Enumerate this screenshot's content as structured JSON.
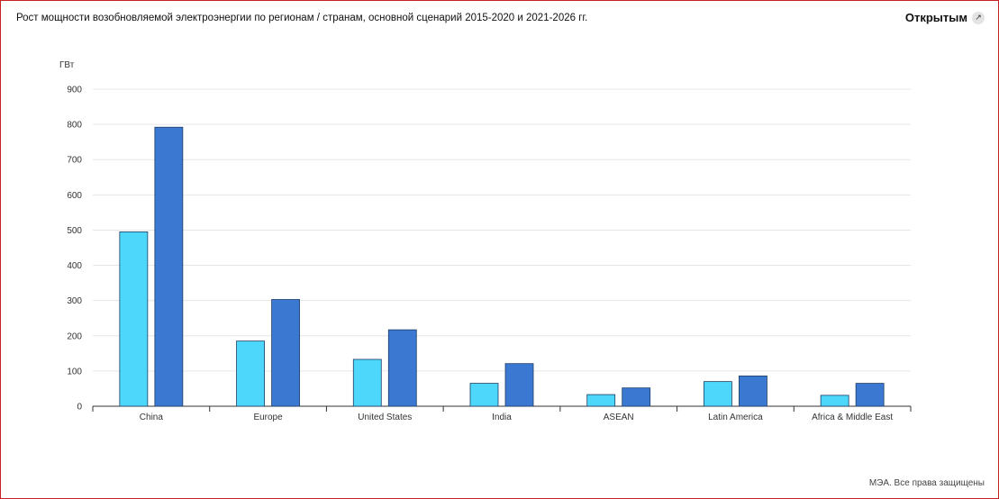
{
  "header": {
    "title": "Рост мощности возобновляемой электроэнергии по регионам / странам, основной сценарий 2015-2020 и 2021-2026 гг.",
    "open_label": "Открытым"
  },
  "footer": {
    "credit": "МЭА. Все права защищены"
  },
  "colors": {
    "series_1": "#4dd7fa",
    "series_2": "#3a78d2",
    "frame": "#c8201e"
  },
  "icons": {
    "open": "expand-arrow-icon"
  },
  "chart_data": {
    "type": "bar",
    "ylabel": "ГВт",
    "ylim": [
      0,
      900
    ],
    "yticks": [
      0,
      100,
      200,
      300,
      400,
      500,
      600,
      700,
      800,
      900
    ],
    "grid": true,
    "categories": [
      "China",
      "Europe",
      "United States",
      "India",
      "ASEAN",
      "Latin America",
      "Africa & Middle East"
    ],
    "series": [
      {
        "values": [
          495,
          185,
          133,
          65,
          33,
          70,
          31
        ]
      },
      {
        "values": [
          792,
          303,
          217,
          121,
          52,
          86,
          65
        ]
      }
    ]
  }
}
